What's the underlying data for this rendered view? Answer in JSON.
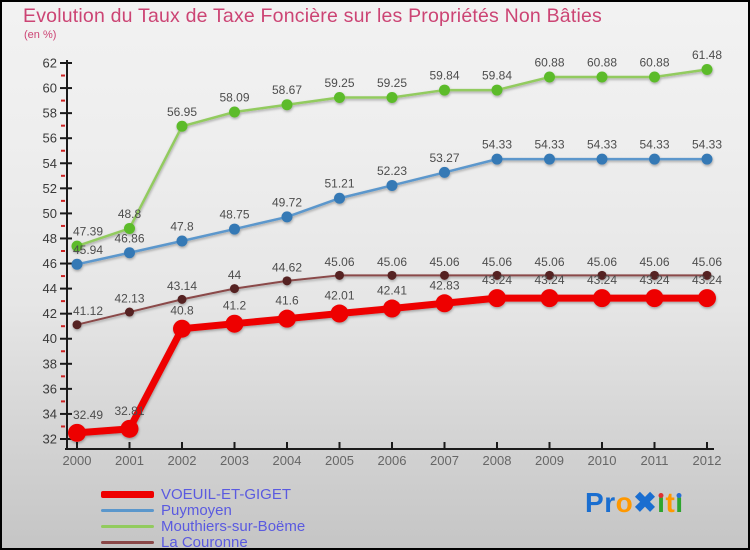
{
  "title": "Evolution du Taux de Taxe Foncière sur les Propriétés Non Bâties",
  "subtitle": "(en %)",
  "colors": {
    "title": "#cc4474",
    "legend_text": "#5a5ae0",
    "axis": "#1a1a1a",
    "minor_tick": "#cc2222",
    "data_label": "#4d4d4d",
    "year_label": "#666666"
  },
  "chart_data": {
    "type": "line",
    "x": [
      2000,
      2001,
      2002,
      2003,
      2004,
      2005,
      2006,
      2007,
      2008,
      2009,
      2010,
      2011,
      2012
    ],
    "ylim": [
      32,
      62
    ],
    "y_major_step": 2,
    "y_minor_step": 1,
    "grid": false,
    "legend_position": "bottom-left",
    "title": "Evolution du Taux de Taxe Foncière sur les Propriétés Non Bâties",
    "ylabel": "(en %)",
    "series": [
      {
        "name": "VOEUIL-ET-GIGET",
        "color": "#ee0000",
        "dot_color": "#ee0000",
        "line_width": 7,
        "dot_radius": 9,
        "values": [
          32.49,
          32.81,
          40.8,
          41.2,
          41.6,
          42.01,
          42.41,
          42.83,
          43.24,
          43.24,
          43.24,
          43.24,
          43.24
        ]
      },
      {
        "name": "Puymoyen",
        "color": "#5b97cc",
        "dot_color": "#3679b5",
        "line_width": 2.5,
        "dot_radius": 5.5,
        "values": [
          45.94,
          46.86,
          47.8,
          48.75,
          49.72,
          51.21,
          52.23,
          53.27,
          54.33,
          54.33,
          54.33,
          54.33,
          54.33
        ]
      },
      {
        "name": "Mouthiers-sur-Boëme",
        "color": "#92cb5e",
        "dot_color": "#5cbb2a",
        "line_width": 2.5,
        "dot_radius": 5.5,
        "values": [
          47.39,
          48.8,
          56.95,
          58.09,
          58.67,
          59.25,
          59.25,
          59.84,
          59.84,
          60.88,
          60.88,
          60.88,
          61.48
        ]
      },
      {
        "name": "La Couronne",
        "color": "#8a4848",
        "dot_color": "#552020",
        "line_width": 2,
        "dot_radius": 4.5,
        "values": [
          41.12,
          42.13,
          43.14,
          44,
          44.62,
          45.06,
          45.06,
          45.06,
          45.06,
          45.06,
          45.06,
          45.06,
          45.06
        ]
      }
    ]
  },
  "logo": {
    "text": "Proxiti",
    "letters": [
      {
        "ch": "P",
        "color": "#1a6ed0"
      },
      {
        "ch": "r",
        "color": "#1a6ed0"
      },
      {
        "ch": "o",
        "color": "#ff9800"
      },
      {
        "ch": "✖",
        "color": "#1a6ed0"
      },
      {
        "ch": "ı",
        "color": "#2ea52e",
        "dot": "#e03030"
      },
      {
        "ch": "t",
        "color": "#ff9800"
      },
      {
        "ch": "ı",
        "color": "#2ea52e",
        "dot": "#2a6fd4"
      }
    ]
  }
}
